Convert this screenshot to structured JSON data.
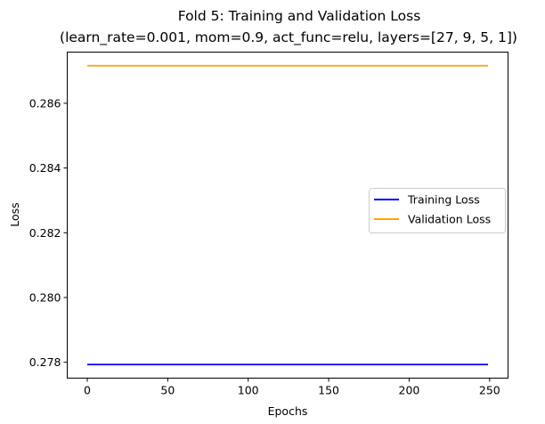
{
  "chart_data": {
    "type": "line",
    "title_line1": "Fold 5: Training and Validation Loss",
    "title_line2": "(learn_rate=0.001, mom=0.9, act_func=relu, layers=[27, 9, 5, 1])",
    "xlabel": "Epochs",
    "ylabel": "Loss",
    "xlim": [
      -12.45,
      261.45
    ],
    "ylim": [
      0.27751,
      0.28758
    ],
    "xticks": [
      0,
      50,
      100,
      150,
      200,
      250
    ],
    "xtick_labels": [
      "0",
      "50",
      "100",
      "150",
      "200",
      "250"
    ],
    "yticks": [
      0.278,
      0.28,
      0.282,
      0.284,
      0.286
    ],
    "ytick_labels": [
      "0.278",
      "0.280",
      "0.282",
      "0.284",
      "0.286"
    ],
    "grid": false,
    "legend_position": "center-right",
    "series": [
      {
        "name": "Training Loss",
        "color": "#0000ff",
        "x": [
          0,
          249
        ],
        "y": [
          0.27793,
          0.27793
        ]
      },
      {
        "name": "Validation Loss",
        "color": "#ffa500",
        "x": [
          0,
          249
        ],
        "y": [
          0.28716,
          0.28716
        ]
      }
    ]
  }
}
